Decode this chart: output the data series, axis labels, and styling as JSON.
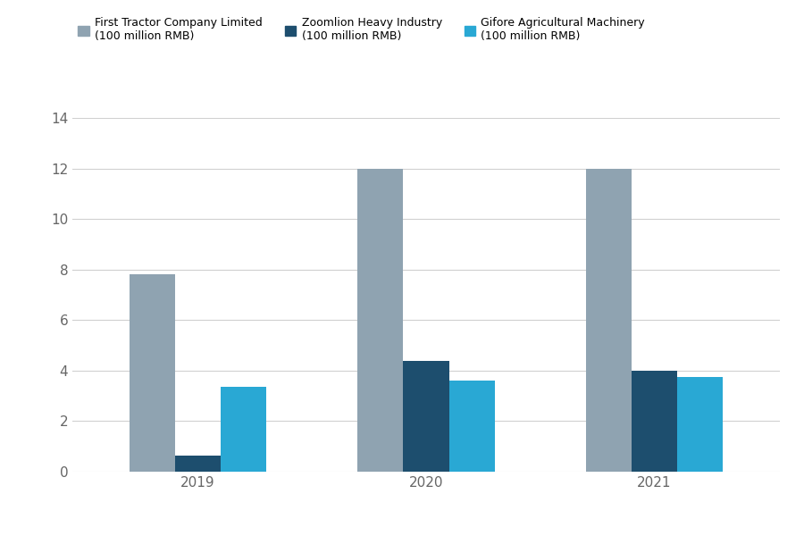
{
  "years": [
    "2019",
    "2020",
    "2021"
  ],
  "series": [
    {
      "label": "First Tractor Company Limited\n(100 million RMB)",
      "values": [
        7.8,
        12.0,
        12.0
      ],
      "color": "#8fa3b1"
    },
    {
      "label": "Zoomlion Heavy Industry\n(100 million RMB)",
      "values": [
        0.65,
        4.4,
        4.0
      ],
      "color": "#1d4e6e"
    },
    {
      "label": "Gifore Agricultural Machinery\n(100 million RMB)",
      "values": [
        3.35,
        3.6,
        3.75
      ],
      "color": "#29a8d4"
    }
  ],
  "ylim": [
    0,
    14
  ],
  "yticks": [
    0,
    2,
    4,
    6,
    8,
    10,
    12,
    14
  ],
  "background_color": "#ffffff",
  "grid_color": "#d0d0d0",
  "bar_width": 0.2,
  "figsize": [
    9.0,
    6.0
  ],
  "dpi": 100
}
